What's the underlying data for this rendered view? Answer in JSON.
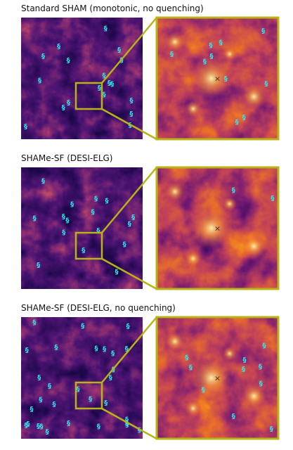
{
  "panels": [
    {
      "title": "Standard SHAM (monotonic, no quenching)"
    },
    {
      "title": "SHAMe-SF (DESI-ELG)"
    },
    {
      "title": "SHAMe-SF (DESI-ELG, no quenching)"
    }
  ]
}
